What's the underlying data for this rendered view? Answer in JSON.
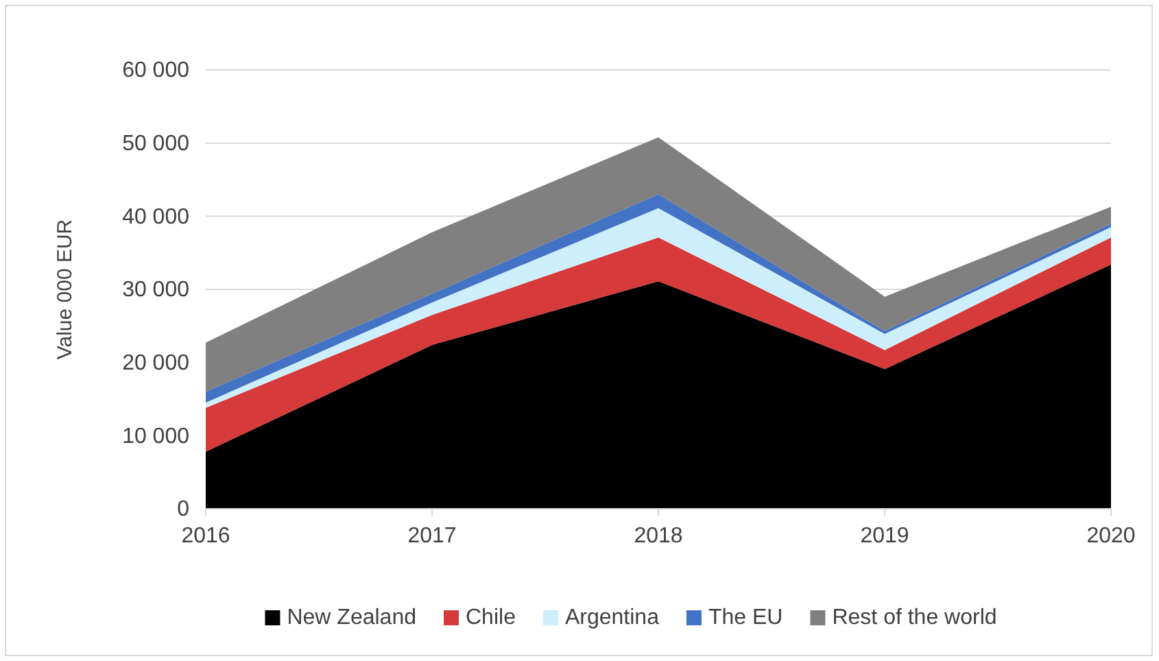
{
  "chart_data": {
    "type": "area",
    "stacked": true,
    "ylabel": "Value 000 EUR",
    "categories": [
      "2016",
      "2017",
      "2018",
      "2019",
      "2020"
    ],
    "series": [
      {
        "name": "New Zealand",
        "color": "#000000",
        "values": [
          7800,
          22400,
          31100,
          19100,
          33400
        ]
      },
      {
        "name": "Chile",
        "color": "#d63a3a",
        "values": [
          6000,
          4100,
          6000,
          2600,
          3700
        ]
      },
      {
        "name": "Argentina",
        "color": "#cdeefb",
        "values": [
          700,
          1700,
          4000,
          2200,
          1400
        ]
      },
      {
        "name": "The EU",
        "color": "#4472c4",
        "values": [
          1500,
          1200,
          1900,
          400,
          500
        ]
      },
      {
        "name": "Rest of the world",
        "color": "#808080",
        "values": [
          6700,
          8400,
          7800,
          4700,
          2300
        ]
      }
    ],
    "ylim": [
      0,
      60000
    ],
    "yticks": [
      0,
      {
        "value": 10000,
        "label": "10 000"
      },
      {
        "value": 20000,
        "label": "20 000"
      },
      {
        "value": 30000,
        "label": "30 000"
      },
      {
        "value": 40000,
        "label": "40 000"
      },
      {
        "value": 50000,
        "label": "50 000"
      },
      {
        "value": 60000,
        "label": "60 000"
      }
    ],
    "grid": "y",
    "legend": "bottom"
  }
}
